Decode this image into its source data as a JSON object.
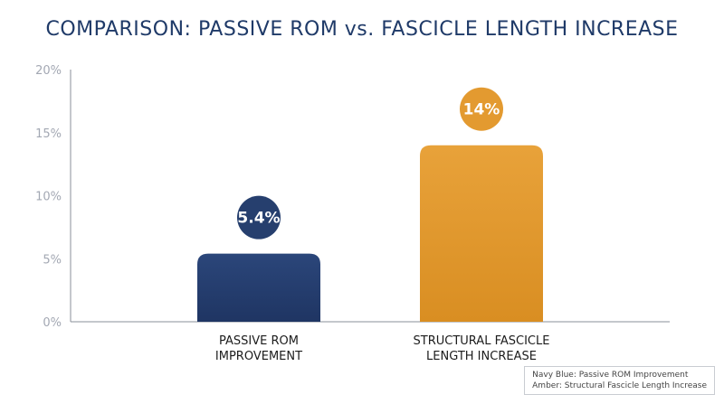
{
  "chart_data": {
    "type": "bar",
    "title": "COMPARISON: PASSIVE ROM vs. FASCICLE LENGTH INCREASE",
    "categories": [
      [
        "PASSIVE ROM",
        "IMPROVEMENT"
      ],
      [
        "STRUCTURAL FASCICLE",
        "LENGTH INCREASE"
      ]
    ],
    "values": [
      5.4,
      14
    ],
    "data_labels": [
      "5.4%",
      "14%"
    ],
    "colors": [
      "#263f6e",
      "#e39a30"
    ],
    "yticks": [
      "0%",
      "5%",
      "10%",
      "15%",
      "20%"
    ],
    "ylim": [
      0,
      20
    ],
    "xlabel": "",
    "ylabel": "",
    "grid": false,
    "legend_placement": "bottom-right",
    "legend": [
      "Navy Blue: Passive ROM Improvement",
      "Amber: Structural Fascicle Length Increase"
    ]
  }
}
